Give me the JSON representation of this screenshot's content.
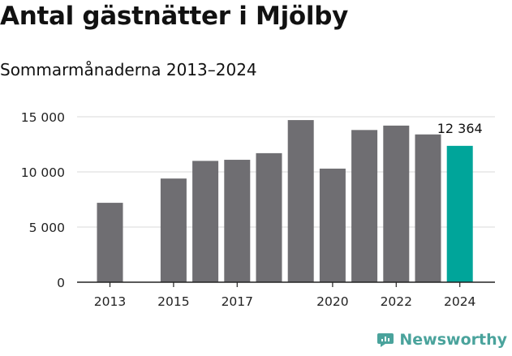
{
  "title": "Antal gästnätter i Mjölby",
  "subtitle": "Sommarmånaderna 2013–2024",
  "brand": {
    "name": "Newsworthy",
    "icon": "newsworthy-logo-icon",
    "color": "#4aa39c"
  },
  "colors": {
    "bar": "#6f6e72",
    "highlight": "#00a59a",
    "grid": "#d9d9d9",
    "axis": "#222222"
  },
  "chart_data": {
    "type": "bar",
    "categories": [
      "2013",
      "2014",
      "2015",
      "2016",
      "2017",
      "2018",
      "2019",
      "2020",
      "2021",
      "2022",
      "2023",
      "2024"
    ],
    "values": [
      7200,
      null,
      9400,
      11000,
      11100,
      11700,
      14700,
      10300,
      13800,
      14200,
      13400,
      12364
    ],
    "highlight_index": 11,
    "annotation": {
      "index": 11,
      "text": "12 364"
    },
    "x_tick_labels": [
      "2013",
      "2015",
      "2017",
      "2020",
      "2022",
      "2024"
    ],
    "y_ticks": [
      {
        "value": 0,
        "label": "0"
      },
      {
        "value": 5000,
        "label": "5 000"
      },
      {
        "value": 10000,
        "label": "10 000"
      },
      {
        "value": 15000,
        "label": "15 000"
      }
    ],
    "ylim": [
      0,
      15000
    ],
    "grid": true,
    "title": "Antal gästnätter i Mjölby",
    "subtitle": "Sommarmånaderna 2013–2024"
  }
}
